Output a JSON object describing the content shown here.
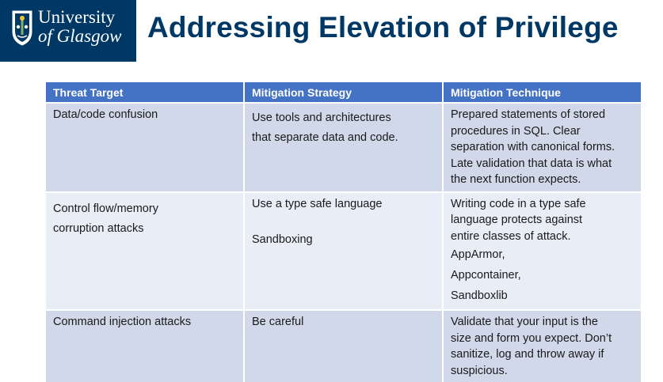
{
  "header": {
    "logo_line1": "University",
    "logo_line2": "of Glasgow",
    "title": "Addressing Elevation of Privilege",
    "colors": {
      "brand": "#003865",
      "header_row": "#4472C4",
      "row_a": "#D0D8EA",
      "row_b": "#E9EDF5"
    }
  },
  "table": {
    "headers": [
      "Threat Target",
      "Mitigation Strategy",
      "Mitigation Technique"
    ],
    "rows": [
      {
        "target": [
          "Data/code confusion"
        ],
        "strategy": [
          "Use tools and architectures",
          "that separate data and code."
        ],
        "technique": [
          "Prepared statements of stored",
          "procedures in SQL. Clear",
          "separation with canonical forms.",
          "Late  validation that data is what",
          "the  next function expects."
        ]
      },
      {
        "target": [
          "Control flow/memory",
          "corruption attacks"
        ],
        "strategy_a": "Use a type safe language",
        "strategy_b": "Sandboxing",
        "technique_a": [
          "Writing code in a type safe",
          "language protects against",
          "entire classes of attack."
        ],
        "technique_b": [
          "AppArmor,",
          "Appcontainer,",
          "Sandboxlib"
        ]
      },
      {
        "target": [
          "Command injection attacks"
        ],
        "strategy": [
          "Be careful"
        ],
        "technique": [
          "Validate that your input is the",
          "size and form you expect. Don’t",
          "sanitize, log and throw away if",
          "suspicious."
        ]
      }
    ]
  }
}
